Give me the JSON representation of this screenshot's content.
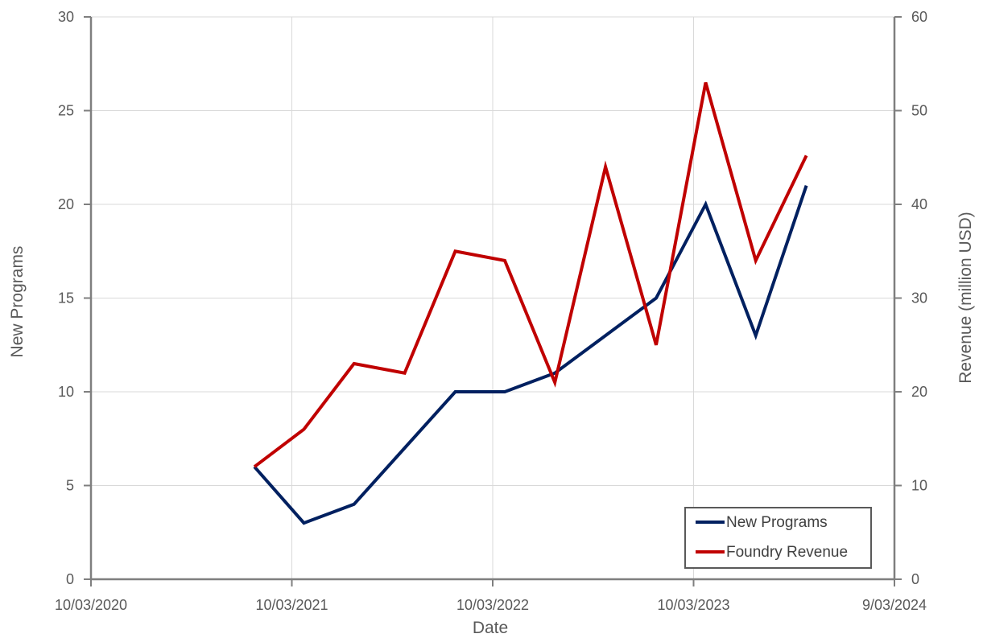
{
  "chart_data": {
    "type": "line",
    "title": "",
    "xlabel": "Date",
    "ylabel": "New Programs",
    "y2label": "Revenue (million USD)",
    "xlim": [
      "2020-03-10",
      "2024-03-09"
    ],
    "ylim": [
      0,
      30
    ],
    "y2lim": [
      0,
      60
    ],
    "x_ticks": [
      "10/03/2020",
      "10/03/2021",
      "10/03/2022",
      "10/03/2023",
      "9/03/2024"
    ],
    "y_ticks": [
      "0",
      "5",
      "10",
      "15",
      "20",
      "25",
      "30"
    ],
    "y2_ticks": [
      "0",
      "10",
      "20",
      "30",
      "40",
      "50",
      "60"
    ],
    "grid": true,
    "legend_position": "bottom-right",
    "series": [
      {
        "name": "New Programs",
        "axis": "left",
        "color": "#002060",
        "x": [
          "2021-01-01",
          "2021-04-01",
          "2021-07-01",
          "2021-10-01",
          "2022-01-01",
          "2022-04-01",
          "2022-07-01",
          "2022-10-01",
          "2023-01-01",
          "2023-04-01",
          "2023-07-01",
          "2023-10-01"
        ],
        "values": [
          6,
          3,
          4,
          7,
          10,
          10,
          11,
          13,
          15,
          20,
          13,
          21
        ]
      },
      {
        "name": "Foundry Revenue",
        "axis": "right",
        "color": "#C00000",
        "x": [
          "2021-01-01",
          "2021-04-01",
          "2021-07-01",
          "2021-10-01",
          "2022-01-01",
          "2022-04-01",
          "2022-07-01",
          "2022-10-01",
          "2023-01-01",
          "2023-04-01",
          "2023-07-01",
          "2023-10-01"
        ],
        "values": [
          12,
          16,
          23,
          22,
          35,
          34,
          21,
          44,
          25,
          53,
          34,
          45.2
        ]
      }
    ]
  }
}
